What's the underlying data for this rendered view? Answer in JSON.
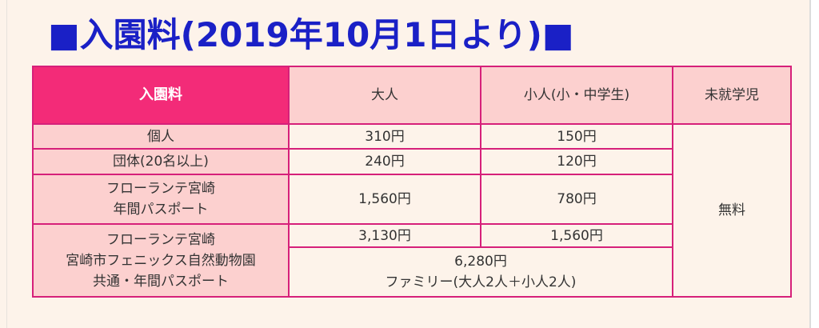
{
  "title": "■入園料(2019年10月1日より)■",
  "table": {
    "headers": [
      "入園料",
      "大人",
      "小人(小・中学生)",
      "未就学児"
    ],
    "rows": [
      {
        "label": "個人",
        "adult": "310円",
        "child": "150円"
      },
      {
        "label": "団体(20名以上)",
        "adult": "240円",
        "child": "120円"
      },
      {
        "label_line1": "フローランテ宮崎",
        "label_line2": "年間パスポート",
        "adult": "1,560円",
        "child": "780円"
      },
      {
        "label_line1": "フローランテ宮崎",
        "label_line2": "宮崎市フェニックス自然動物園",
        "label_line3": "共通・年間パスポート",
        "adult": "3,130円",
        "child": "1,560円",
        "family_price": "6,280円",
        "family_note": "ファミリー(大人2人＋小人2人)"
      }
    ],
    "preschool": "無料"
  },
  "colors": {
    "title": "#1a20c6",
    "header_main": "#f32b78",
    "header_sub": "#fcd0cf",
    "border": "#d6207a",
    "background": "#fdf3ea"
  }
}
